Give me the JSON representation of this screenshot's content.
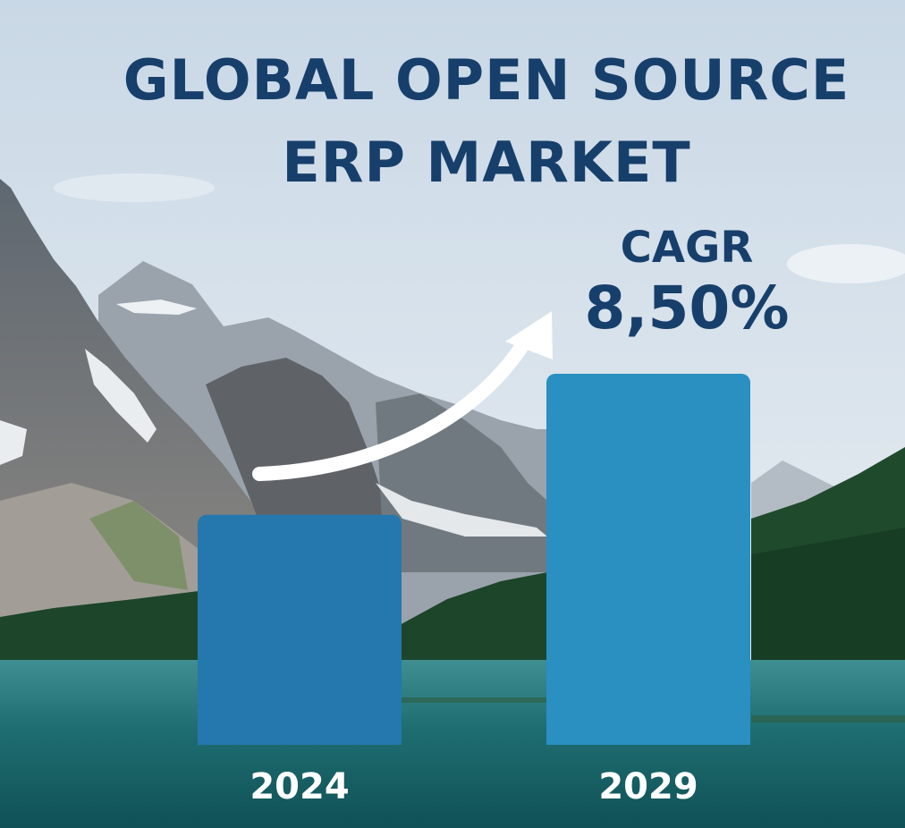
{
  "header": {
    "title_line1": "GLOBAL OPEN SOURCE",
    "title_line2": "ERP MARKET"
  },
  "annotation": {
    "cagr_label": "CAGR",
    "cagr_value": "8,50%"
  },
  "colors": {
    "title": "#173f6b",
    "bar_2024": "#2478ad",
    "bar_2029": "#2a8fc1",
    "arrow": "#ffffff",
    "tick_label": "#ffffff"
  },
  "chart_data": {
    "type": "bar",
    "categories": [
      "2024",
      "2029"
    ],
    "values": [
      0.62,
      1.0
    ],
    "ylim": [
      0,
      1.0
    ],
    "grid": false,
    "legend": "none",
    "annotation_arrow": {
      "from": "2024",
      "to": "2029",
      "icon": "growth-arrow-icon"
    }
  }
}
